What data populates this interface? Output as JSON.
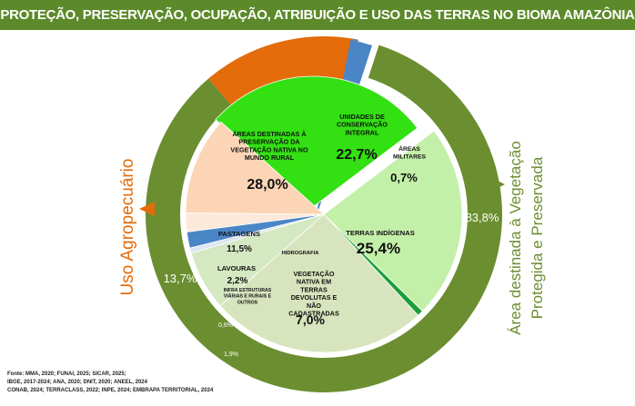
{
  "banner": {
    "title": "PROTEÇÃO, PRESERVAÇÃO, OCUPAÇÃO, ATRIBUIÇÃO E USO DAS TERRAS NO BIOMA AMAZÔNIA"
  },
  "colors": {
    "banner": "#5c8a2a",
    "outer_preserved": "#6b8e30",
    "outer_agro": "#e46c0a",
    "outer_other": "#808080",
    "outer_blue": "#4a86c5",
    "areas_rural": "#33e012",
    "conservacao": "#c3f0a8",
    "militares": "#1c9e3a",
    "indigenas": "#d7e4bd",
    "devolutas": "#d4e8c2",
    "pastagens": "#fbd5b5",
    "lavouras": "#fde9d9",
    "hidrografia": "#ffffff",
    "infra": "#dde6f0",
    "blue_slice": "#4a86c5"
  },
  "chart_data": {
    "type": "pie",
    "subtype": "nested-donut",
    "title": "PROTEÇÃO, PRESERVAÇÃO, OCUPAÇÃO, ATRIBUIÇÃO E USO DAS TERRAS NO BIOMA AMAZÔNIA",
    "outer_ring": [
      {
        "label": "Área destinada à Vegetação Protegida e Preservada",
        "value": 83.8,
        "value_label": "83,8%"
      },
      {
        "label": "Uso Agropecuário",
        "value": 13.7,
        "value_label": "13,7%"
      },
      {
        "label": "",
        "value": 0.6,
        "value_label": "0,6%"
      },
      {
        "label": "",
        "value": 1.9,
        "value_label": "1,9%"
      }
    ],
    "inner_pie": [
      {
        "label": "ÁREAS DESTINADAS À PRESERVAÇÃO DA VEGETAÇÃO NATIVA NO MUNDO RURAL",
        "value": 28.0,
        "value_label": "28,0%"
      },
      {
        "label": "UNIDADES DE CONSERVAÇÃO INTEGRAL",
        "value": 22.7,
        "value_label": "22,7%"
      },
      {
        "label": "ÁREAS MILITARES",
        "value": 0.7,
        "value_label": "0,7%"
      },
      {
        "label": "TERRAS INDÍGENAS",
        "value": 25.4,
        "value_label": "25,4%"
      },
      {
        "label": "VEGETAÇÃO NATIVA EM TERRAS DEVOLUTAS E NÃO CADASTRADAS",
        "value": 7.0,
        "value_label": "7,0%"
      },
      {
        "label": "INFRA ESTRUTURAS VIÁRIAS E RURAIS E OUTROS",
        "value": 0.6,
        "value_label": ""
      },
      {
        "label": "",
        "value": 1.9,
        "value_label": ""
      },
      {
        "label": "LAVOURAS",
        "value": 2.2,
        "value_label": "2,2%"
      },
      {
        "label": "PASTAGENS",
        "value": 11.5,
        "value_label": "11,5%"
      },
      {
        "label": "HIDROGRAFIA",
        "value": 0.0,
        "value_label": ""
      }
    ],
    "outer_text_labels": {
      "agro_title": "Uso Agropecuário",
      "preserved_title_line1": "Área destinada à Vegetação",
      "preserved_title_line2": "Protegida e Preservada"
    }
  },
  "source": {
    "lines": [
      "Fonte: MMA, 2020; FUNAI, 2025; SICAR, 2025;",
      "IBGE, 2017-2024; ANA, 2020; DNIT, 2020; ANEEL, 2024",
      "CONAB, 2024; TERRACLASS, 2022; INPE, 2024; EMBRAPA TERRITORIAL, 2024"
    ]
  }
}
